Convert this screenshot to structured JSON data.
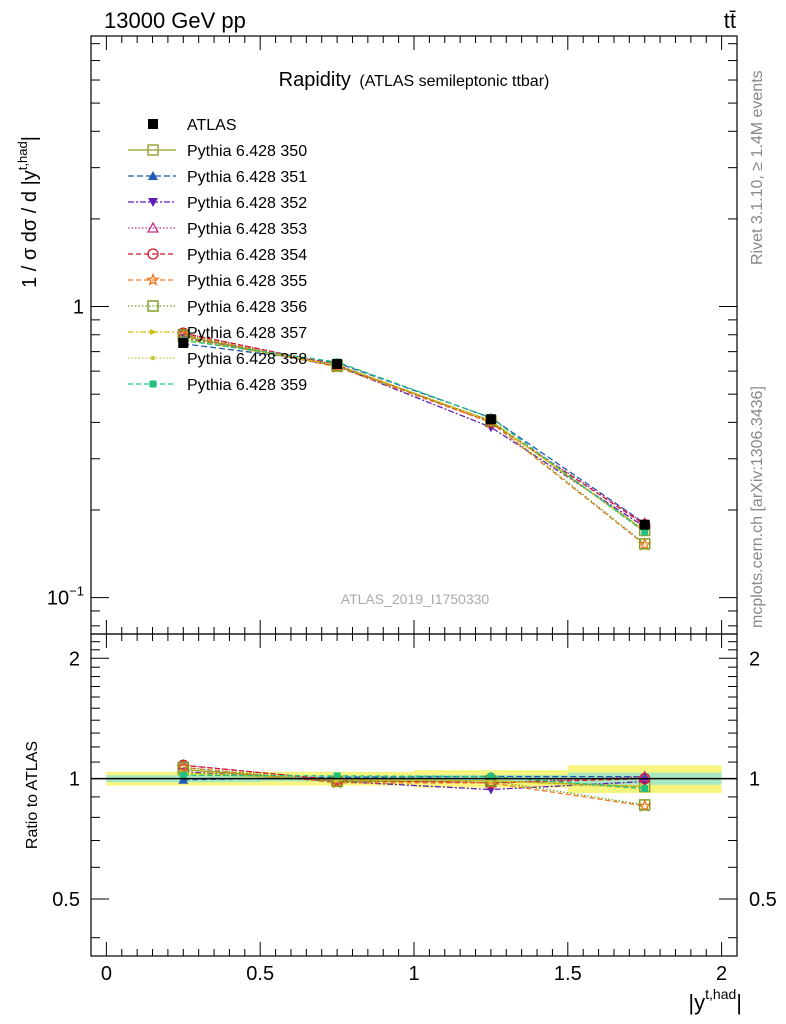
{
  "header": {
    "energy_label": "13000 GeV pp",
    "process_label": "tt̄"
  },
  "side_labels": {
    "rivet": "Rivet 3.1.10, ≥ 1.4M events",
    "mcplots": "mcplots.cern.ch [arXiv:1306.3436]"
  },
  "chart_data": {
    "type": "line",
    "title": "Rapidity",
    "subtitle": "(ATLAS semileptonic ttbar)",
    "analysis_label": "ATLAS_2019_I1750330",
    "xlabel": "|y^{t,had}|",
    "xlabel_main": "|y",
    "xlabel_sup": "t,had",
    "xlabel_close": "|",
    "ylabel": "1 / σ dσ / d |y^{t,had}|",
    "ylabel_main": "1 / σ dσ / d |y",
    "ylabel_sup": "t,had",
    "ylabel_close": "|",
    "ratio_ylabel": "Ratio to ATLAS",
    "x_range": [
      -0.05,
      2.05
    ],
    "main_ylim": [
      0.075,
      8.5
    ],
    "main_yscale": "log",
    "ratio_ylim": [
      0.36,
      2.3
    ],
    "ratio_yscale": "log",
    "grid": false,
    "legend_position": "top-left",
    "x_ticks": [
      {
        "v": 0,
        "label": "0"
      },
      {
        "v": 0.5,
        "label": "0.5"
      },
      {
        "v": 1,
        "label": "1"
      },
      {
        "v": 1.5,
        "label": "1.5"
      },
      {
        "v": 2,
        "label": "2"
      }
    ],
    "main_y_ticks": [
      {
        "v": 0.1,
        "base": "10",
        "exp": "−1"
      },
      {
        "v": 1,
        "base": "1",
        "exp": ""
      }
    ],
    "ratio_y_ticks": [
      {
        "v": 0.5,
        "label": "0.5"
      },
      {
        "v": 1,
        "label": "1"
      },
      {
        "v": 2,
        "label": "2"
      }
    ],
    "x": [
      0.25,
      0.75,
      1.25,
      1.75
    ],
    "data": {
      "name": "ATLAS",
      "values": [
        0.75,
        0.635,
        0.41,
        0.178
      ],
      "band_stat": [
        0.02,
        0.015,
        0.02,
        0.035
      ],
      "band_total": [
        0.04,
        0.04,
        0.05,
        0.08
      ]
    },
    "series": [
      {
        "name": "Pythia 6.428 350",
        "color": "#9a9a2a",
        "dash": "",
        "marker": "square-open",
        "values": [
          0.79,
          0.625,
          0.405,
          0.17
        ]
      },
      {
        "name": "Pythia 6.428 351",
        "color": "#1f5bb5",
        "dash": "6,3",
        "marker": "triangle-up",
        "values": [
          0.745,
          0.64,
          0.415,
          0.18
        ]
      },
      {
        "name": "Pythia 6.428 352",
        "color": "#5b1fb5",
        "dash": "6,2,2,2",
        "marker": "triangle-down",
        "values": [
          0.78,
          0.625,
          0.385,
          0.175
        ]
      },
      {
        "name": "Pythia 6.428 353",
        "color": "#c0308a",
        "dash": "1.5,2",
        "marker": "triangle-open",
        "values": [
          0.81,
          0.63,
          0.4,
          0.18
        ]
      },
      {
        "name": "Pythia 6.428 354",
        "color": "#d4142a",
        "dash": "5,3",
        "marker": "circle-open",
        "values": [
          0.81,
          0.63,
          0.4,
          0.178
        ]
      },
      {
        "name": "Pythia 6.428 355",
        "color": "#f07820",
        "dash": "5,3",
        "marker": "star-open",
        "values": [
          0.8,
          0.62,
          0.4,
          0.152
        ]
      },
      {
        "name": "Pythia 6.428 356",
        "color": "#7a9a1a",
        "dash": "1.5,2",
        "marker": "square-open",
        "values": [
          0.8,
          0.625,
          0.405,
          0.153
        ]
      },
      {
        "name": "Pythia 6.428 357",
        "color": "#d0c010",
        "dash": "6,2,2,2",
        "marker": "tri-small",
        "values": [
          0.775,
          0.63,
          0.405,
          0.17
        ]
      },
      {
        "name": "Pythia 6.428 358",
        "color": "#c8c838",
        "dash": "1.5,2",
        "marker": "dot",
        "values": [
          0.77,
          0.63,
          0.405,
          0.168
        ]
      },
      {
        "name": "Pythia 6.428 359",
        "color": "#20c080",
        "dash": "5,3",
        "marker": "square-filled",
        "values": [
          0.765,
          0.645,
          0.415,
          0.168
        ]
      }
    ]
  }
}
